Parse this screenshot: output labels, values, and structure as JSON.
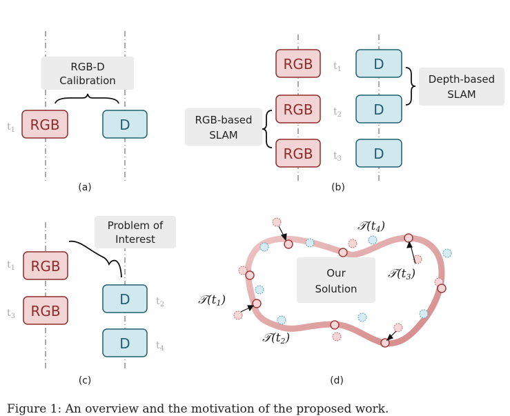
{
  "boxes": {
    "rgb": "RGB",
    "d": "D"
  },
  "panel_a": {
    "label": "(a)",
    "callout_line1": "RGB-D",
    "callout_line2": "Calibration",
    "time": "t",
    "time_sub": "1"
  },
  "panel_b": {
    "label": "(b)",
    "depth_line1": "Depth-based",
    "depth_line2": "SLAM",
    "rgb_line1": "RGB-based",
    "rgb_line2": "SLAM",
    "times": [
      {
        "t": "t",
        "sub": "1"
      },
      {
        "t": "t",
        "sub": "2"
      },
      {
        "t": "t",
        "sub": "3"
      }
    ]
  },
  "panel_c": {
    "label": "(c)",
    "callout_line1": "Problem of",
    "callout_line2": "Interest",
    "times_left": [
      {
        "t": "t",
        "sub": "1"
      },
      {
        "t": "t",
        "sub": "3"
      }
    ],
    "times_right": [
      {
        "t": "t",
        "sub": "2"
      },
      {
        "t": "t",
        "sub": "4"
      }
    ]
  },
  "panel_d": {
    "label": "(d)",
    "center_line1": "Our",
    "center_line2": "Solution",
    "labels": [
      {
        "T": "𝒯",
        "open": "(t",
        "sub": "1",
        "close": ")"
      },
      {
        "T": "𝒯",
        "open": "(t",
        "sub": "2",
        "close": ")"
      },
      {
        "T": "𝒯",
        "open": "(t",
        "sub": "3",
        "close": ")"
      },
      {
        "T": "𝒯",
        "open": "(t",
        "sub": "4",
        "close": ")"
      }
    ]
  },
  "caption": "Figure 1: An overview and the motivation of the proposed work."
}
